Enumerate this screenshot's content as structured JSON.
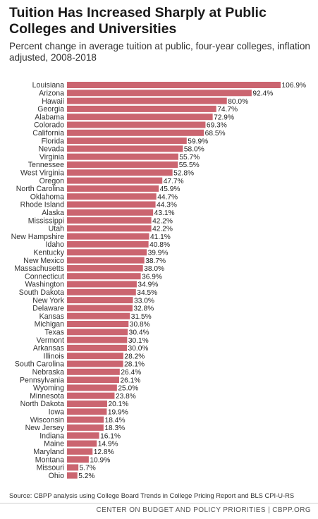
{
  "header": {
    "title": "Tuition Has Increased Sharply at Public Colleges and Universities",
    "subtitle": "Percent change in average tuition at public, four-year colleges, inflation adjusted, 2008-2018"
  },
  "source": "Source: CBPP analysis using College Board Trends in College Pricing Report and BLS CPI-U-RS",
  "footer": "CENTER ON BUDGET AND POLICY PRIORITIES | CBPP.ORG",
  "colors": {
    "bar": "#cb6570",
    "bar_label": "#222222"
  },
  "chart_data": {
    "type": "bar",
    "orientation": "horizontal",
    "value_suffix": "%",
    "xlim": [
      0,
      106.9
    ],
    "grid": false,
    "categories": [
      "Louisiana",
      "Arizona",
      "Hawaii",
      "Georgia",
      "Alabama",
      "Colorado",
      "California",
      "Florida",
      "Nevada",
      "Virginia",
      "Tennessee",
      "West Virginia",
      "Oregon",
      "North Carolina",
      "Oklahoma",
      "Rhode Island",
      "Alaska",
      "Mississippi",
      "Utah",
      "New Hampshire",
      "Idaho",
      "Kentucky",
      "New Mexico",
      "Massachusetts",
      "Connecticut",
      "Washington",
      "South Dakota",
      "New York",
      "Delaware",
      "Kansas",
      "Michigan",
      "Texas",
      "Vermont",
      "Arkansas",
      "Illinois",
      "South Carolina",
      "Nebraska",
      "Pennsylvania",
      "Wyoming",
      "Minnesota",
      "North Dakota",
      "Iowa",
      "Wisconsin",
      "New Jersey",
      "Indiana",
      "Maine",
      "Maryland",
      "Montana",
      "Missouri",
      "Ohio"
    ],
    "values": [
      106.9,
      92.4,
      80.0,
      74.7,
      72.9,
      69.3,
      68.5,
      59.9,
      58.0,
      55.7,
      55.5,
      52.8,
      47.7,
      45.9,
      44.7,
      44.3,
      43.1,
      42.2,
      42.2,
      41.1,
      40.8,
      39.9,
      38.7,
      38.0,
      36.9,
      34.9,
      34.5,
      33.0,
      32.8,
      31.5,
      30.8,
      30.4,
      30.1,
      30.0,
      28.2,
      28.1,
      26.4,
      26.1,
      25.0,
      23.8,
      20.1,
      19.9,
      18.4,
      18.3,
      16.1,
      14.9,
      12.8,
      10.9,
      5.7,
      5.2
    ],
    "labels": [
      "106.9%",
      "92.4%",
      "80.0%",
      "74.7%",
      "72.9%",
      "69.3%",
      "68.5%",
      "59.9%",
      "58.0%",
      "55.7%",
      "55.5%",
      "52.8%",
      "47.7%",
      "45.9%",
      "44.7%",
      "44.3%",
      "43.1%",
      "42.2%",
      "42.2%",
      "41.1%",
      "40.8%",
      "39.9%",
      "38.7%",
      "38.0%",
      "36.9%",
      "34.9%",
      "34.5%",
      "33.0%",
      "32.8%",
      "31.5%",
      "30.8%",
      "30.4%",
      "30.1%",
      "30.0%",
      "28.2%",
      "28.1%",
      "26.4%",
      "26.1%",
      "25.0%",
      "23.8%",
      "20.1%",
      "19.9%",
      "18.4%",
      "18.3%",
      "16.1%",
      "14.9%",
      "12.8%",
      "10.9%",
      "5.7%",
      "5.2%"
    ]
  }
}
